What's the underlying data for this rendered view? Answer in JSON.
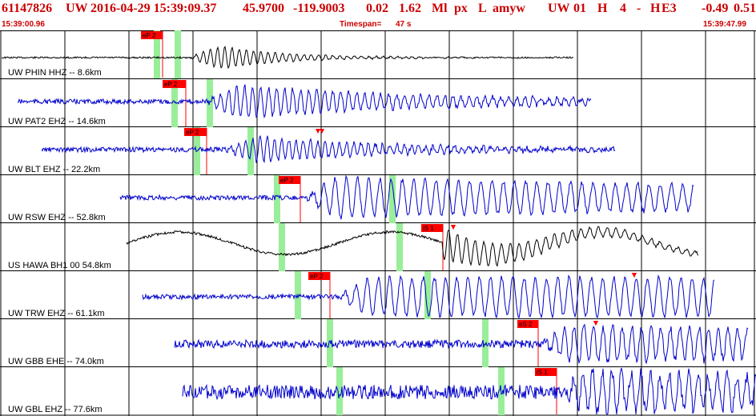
{
  "header": {
    "event_id": "61147826",
    "network": "UW",
    "datetime": "2016-04-29 15:39:09.37",
    "lat": "45.9700",
    "lon": "-119.9003",
    "depth": "0.02",
    "magnitude": "1.62",
    "mag_type": "Ml",
    "event_type": "px",
    "flag": "L",
    "author": "amyw",
    "source": "UW",
    "version": "01",
    "quality": "H",
    "nph": "4",
    "dash": "-",
    "gap_q": "H",
    "e_code": "E3",
    "rms": "-0.49",
    "err": "0.51"
  },
  "subheader": {
    "start_time": "15:39:00.96",
    "timespan_label": "Timespan=",
    "timespan": "47 s",
    "end_time": "15:39:47.99"
  },
  "colors": {
    "header_red": "#cc0000",
    "trace_blue": "#0000cc",
    "trace_black": "#000000",
    "pick_red": "#ff0000",
    "green_marker": "#99ee99",
    "grid": "#000000"
  },
  "traces": [
    {
      "label": "UW PHIN HHZ -- 8.6km",
      "color": "black",
      "p_pick": "eP 2",
      "s_pick": null
    },
    {
      "label": "UW PAT2 EHZ -- 14.6km",
      "color": "blue",
      "p_pick": "eP 2",
      "s_pick": null
    },
    {
      "label": "UW BLT EHZ -- 22.2km",
      "color": "blue",
      "p_pick": "eP 2",
      "s_pick": null
    },
    {
      "label": "UW RSW EHZ -- 52.8km",
      "color": "blue",
      "p_pick": "eP 2",
      "s_pick": null
    },
    {
      "label": "US HAWA BH1 00 54.8km",
      "color": "black",
      "p_pick": null,
      "s_pick": "iS 1"
    },
    {
      "label": "UW TRW EHZ -- 61.1km",
      "color": "blue",
      "p_pick": "eP 2",
      "s_pick": null
    },
    {
      "label": "UW GBB EHE -- 74.0km",
      "color": "blue",
      "p_pick": null,
      "s_pick": "eS 2"
    },
    {
      "label": "UW GBL EHZ -- 77.6km",
      "color": "blue",
      "p_pick": null,
      "s_pick": "iS 1"
    }
  ]
}
